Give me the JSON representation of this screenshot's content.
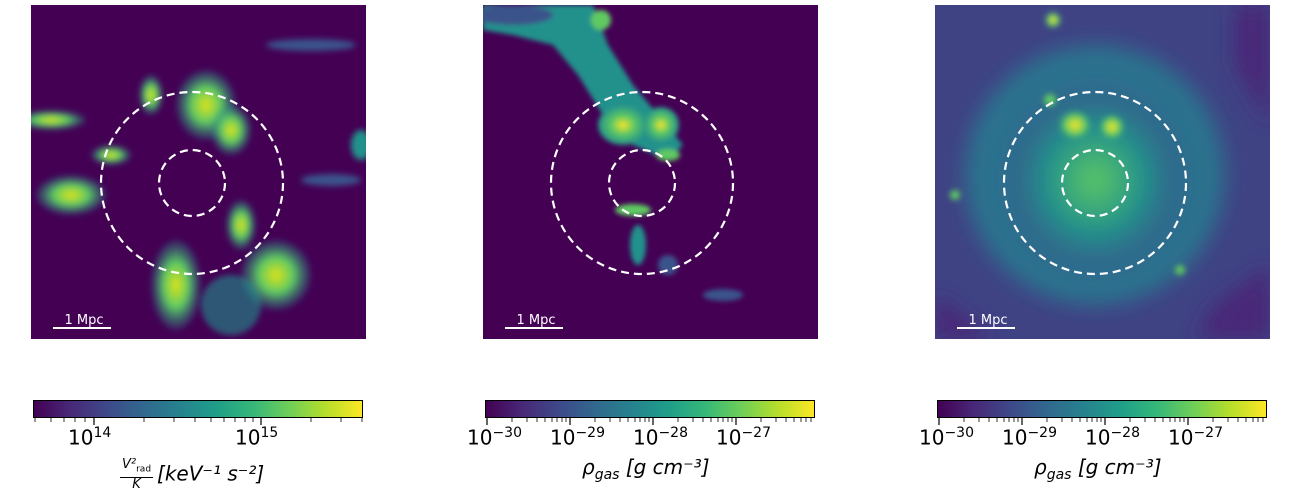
{
  "panels": [
    {
      "scalebar": "1 Mpc"
    },
    {
      "scalebar": "1 Mpc"
    },
    {
      "scalebar": "1 Mpc"
    }
  ],
  "colorbars": [
    {
      "ticks": [
        "10",
        "10"
      ],
      "exponents": [
        "14",
        "15"
      ],
      "label_num": "V²",
      "label_num_sub": "rad",
      "label_den": "K",
      "label_units": "[keV⁻¹ s⁻²]"
    },
    {
      "ticks": [
        "10",
        "10",
        "10",
        "10"
      ],
      "exponents": [
        "−30",
        "−29",
        "−28",
        "−27"
      ],
      "label": "ρ",
      "label_sub": "gas",
      "label_units": "[g cm⁻³]"
    },
    {
      "ticks": [
        "10",
        "10",
        "10",
        "10"
      ],
      "exponents": [
        "−30",
        "−29",
        "−28",
        "−27"
      ],
      "label": "ρ",
      "label_sub": "gas",
      "label_units": "[g cm⁻³]"
    }
  ],
  "colormap": [
    "#440154",
    "#3b528b",
    "#21918c",
    "#5ec962",
    "#fde725"
  ]
}
